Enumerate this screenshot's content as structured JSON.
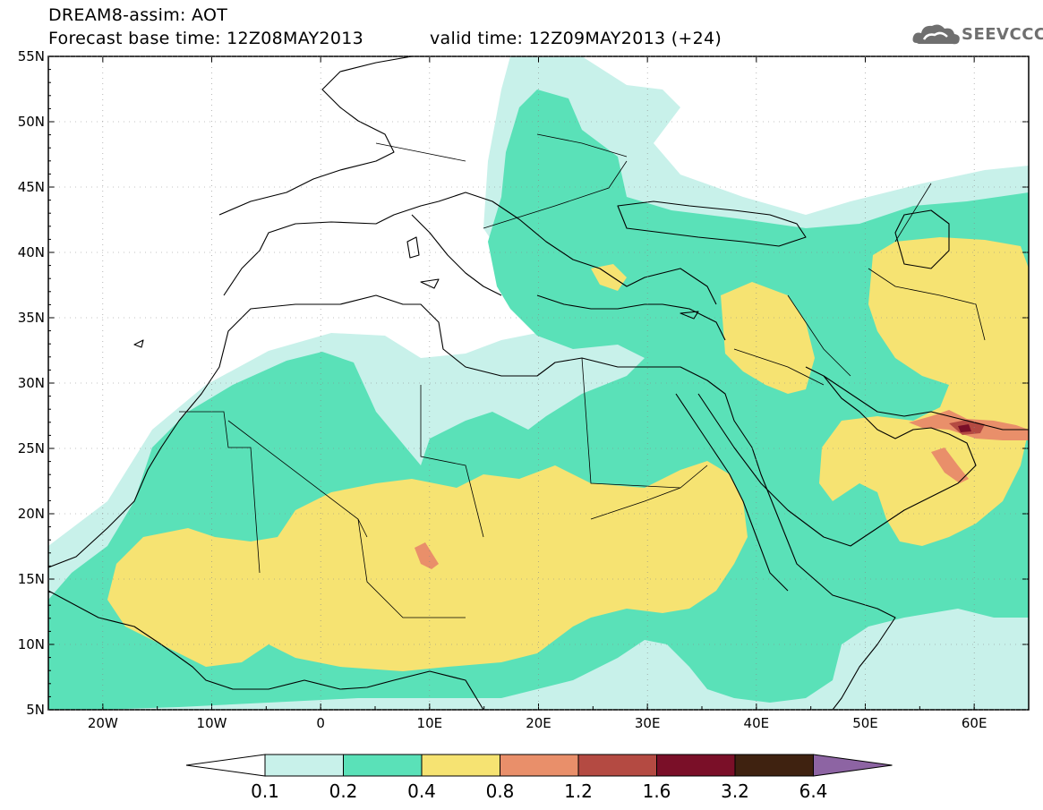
{
  "header": {
    "line1": "DREAM8-assim: AOT",
    "line2": "Forecast base time: 12Z08MAY2013",
    "line3": "valid time: 12Z09MAY2013 (+24)",
    "logo_text": "SEEVCCC",
    "logo_icon": "cloud-icon"
  },
  "map": {
    "lat_ticks": [
      "55N",
      "50N",
      "45N",
      "40N",
      "35N",
      "30N",
      "25N",
      "20N",
      "15N",
      "10N",
      "5N"
    ],
    "lon_ticks": [
      "20W",
      "10W",
      "0",
      "10E",
      "20E",
      "30E",
      "40E",
      "50E",
      "60E"
    ],
    "lon_range": [
      -25,
      65
    ],
    "lat_range": [
      5,
      55
    ]
  },
  "legend": {
    "labels": [
      "0.1",
      "0.2",
      "0.4",
      "0.8",
      "1.2",
      "1.6",
      "3.2",
      "6.4"
    ],
    "colors": [
      "#c8f1ea",
      "#5ae1b8",
      "#f6e372",
      "#e98f6a",
      "#b44a42",
      "#7a0f28",
      "#3f2210",
      "#8d64a3"
    ]
  }
}
